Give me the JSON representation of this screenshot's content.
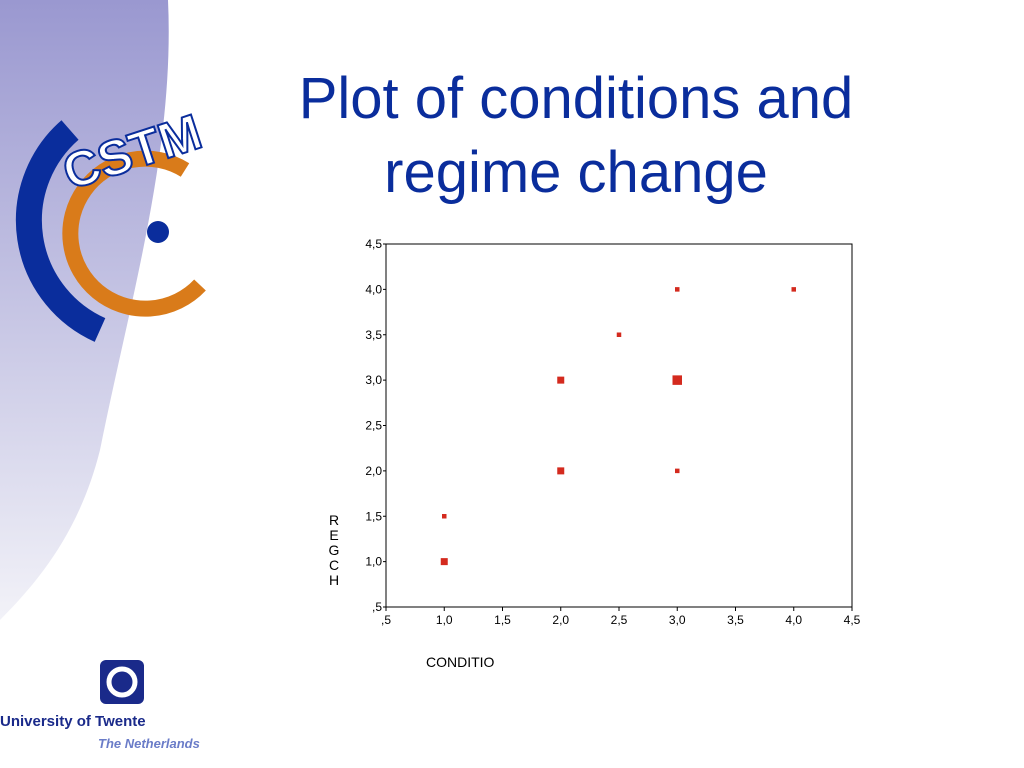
{
  "slide": {
    "logo_text": "CSTM",
    "university": "University of Twente",
    "country": "The Netherlands"
  },
  "chart_data": {
    "type": "scatter",
    "title": "Plot of conditions and regime change",
    "x_label": "CONDITIO",
    "y_label": "REGCH",
    "x": [
      1.0,
      1.0,
      2.0,
      2.0,
      2.5,
      3.0,
      3.0,
      3.0,
      4.0
    ],
    "values": [
      1.0,
      1.5,
      2.0,
      3.0,
      3.5,
      4.0,
      3.0,
      2.0,
      4.0
    ],
    "sizes": [
      2,
      1,
      2,
      2,
      1,
      1,
      3,
      1,
      1
    ],
    "color": "#d42a1e",
    "xlim": [
      0.5,
      4.5
    ],
    "xticks": [
      {
        "value": 0.5,
        "label": ",5"
      },
      {
        "value": 1.0,
        "label": "1,0"
      },
      {
        "value": 1.5,
        "label": "1,5"
      },
      {
        "value": 2.0,
        "label": "2,0"
      },
      {
        "value": 2.5,
        "label": "2,5"
      },
      {
        "value": 3.0,
        "label": "3,0"
      },
      {
        "value": 3.5,
        "label": "3,5"
      },
      {
        "value": 4.0,
        "label": "4,0"
      },
      {
        "value": 4.5,
        "label": "4,5"
      }
    ],
    "ylim": [
      0.5,
      4.5
    ],
    "yticks": [
      {
        "value": 0.5,
        "label": ",5"
      },
      {
        "value": 1.0,
        "label": "1,0"
      },
      {
        "value": 1.5,
        "label": "1,5"
      },
      {
        "value": 2.0,
        "label": "2,0"
      },
      {
        "value": 2.5,
        "label": "2,5"
      },
      {
        "value": 3.0,
        "label": "3,0"
      },
      {
        "value": 3.5,
        "label": "3,5"
      },
      {
        "value": 4.0,
        "label": "4,0"
      },
      {
        "value": 4.5,
        "label": "4,5"
      }
    ]
  }
}
